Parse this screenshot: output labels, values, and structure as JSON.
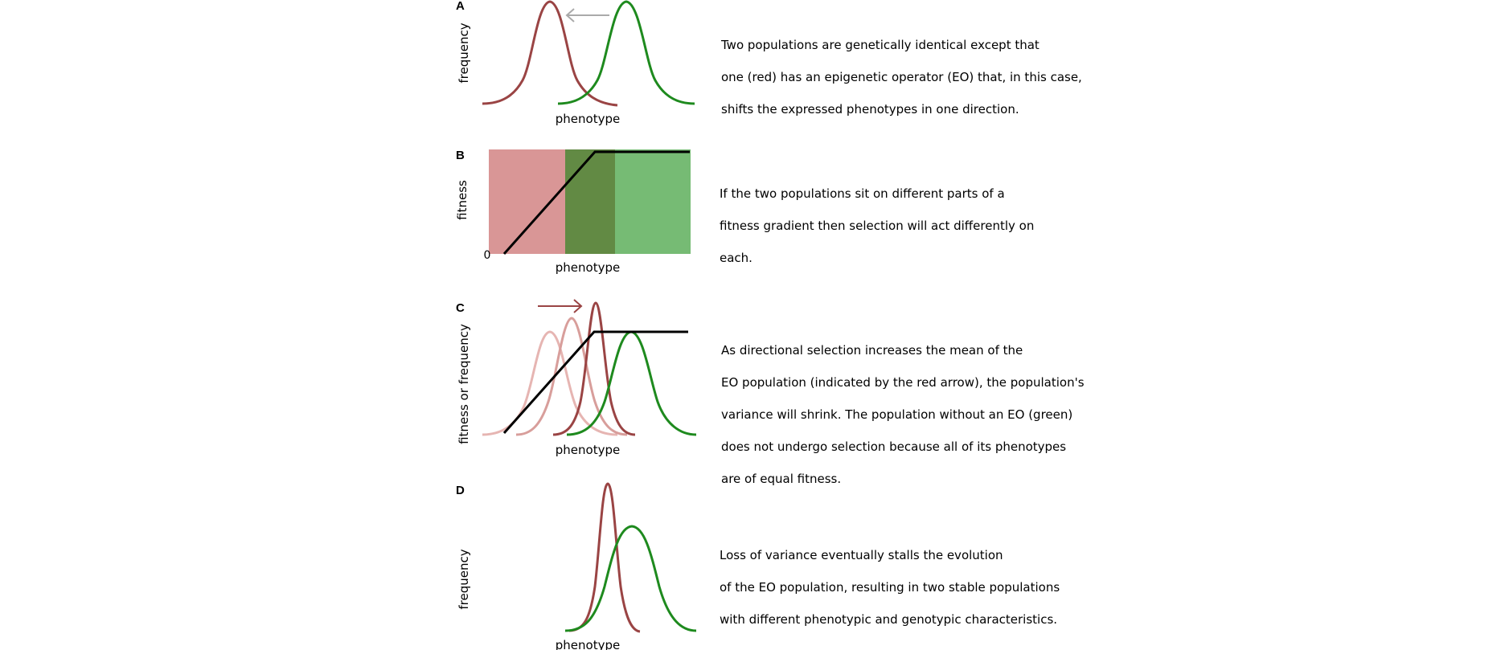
{
  "colors": {
    "red_curve": "#9a4444",
    "red_curve_faint": "#e6b5b2",
    "red_curve_mid": "#d89e9b",
    "green_curve": "#1e8a1e",
    "shift_arrow_grey": "#aaaaaa",
    "selection_arrow": "#9a4444",
    "fitness_line": "#000000",
    "zone_red": "#d99696",
    "zone_dark_green": "#628a44",
    "zone_light_green": "#76bb74"
  },
  "panels": [
    {
      "letter": "A",
      "ylabel": "frequency",
      "xlabel": "phenotype",
      "caption_lines": [
        "Two populations are genetically identical except that",
        "one (red) has an epigenetic operator (EO) that, in this case,",
        "shifts the expressed phenotypes in one direction."
      ]
    },
    {
      "letter": "B",
      "ylabel": "fitness",
      "xlabel": "phenotype",
      "origin_label": "0",
      "caption_lines": [
        "If the two populations sit on different parts of a",
        "fitness gradient then selection will act differently on",
        "each."
      ]
    },
    {
      "letter": "C",
      "ylabel": "fitness or frequency",
      "xlabel": "phenotype",
      "caption_lines": [
        "As directional selection increases the mean of the",
        "EO population (indicated by the red arrow), the population's",
        "variance will shrink.  The population without an EO (green)",
        "does not undergo selection because all of its phenotypes",
        "are of equal fitness."
      ]
    },
    {
      "letter": "D",
      "ylabel": "frequency",
      "xlabel": "phenotype",
      "caption_lines": [
        "Loss of variance eventually stalls the evolution",
        "of the EO population, resulting in two stable populations",
        "with different phenotypic and genotypic characteristics."
      ]
    }
  ]
}
